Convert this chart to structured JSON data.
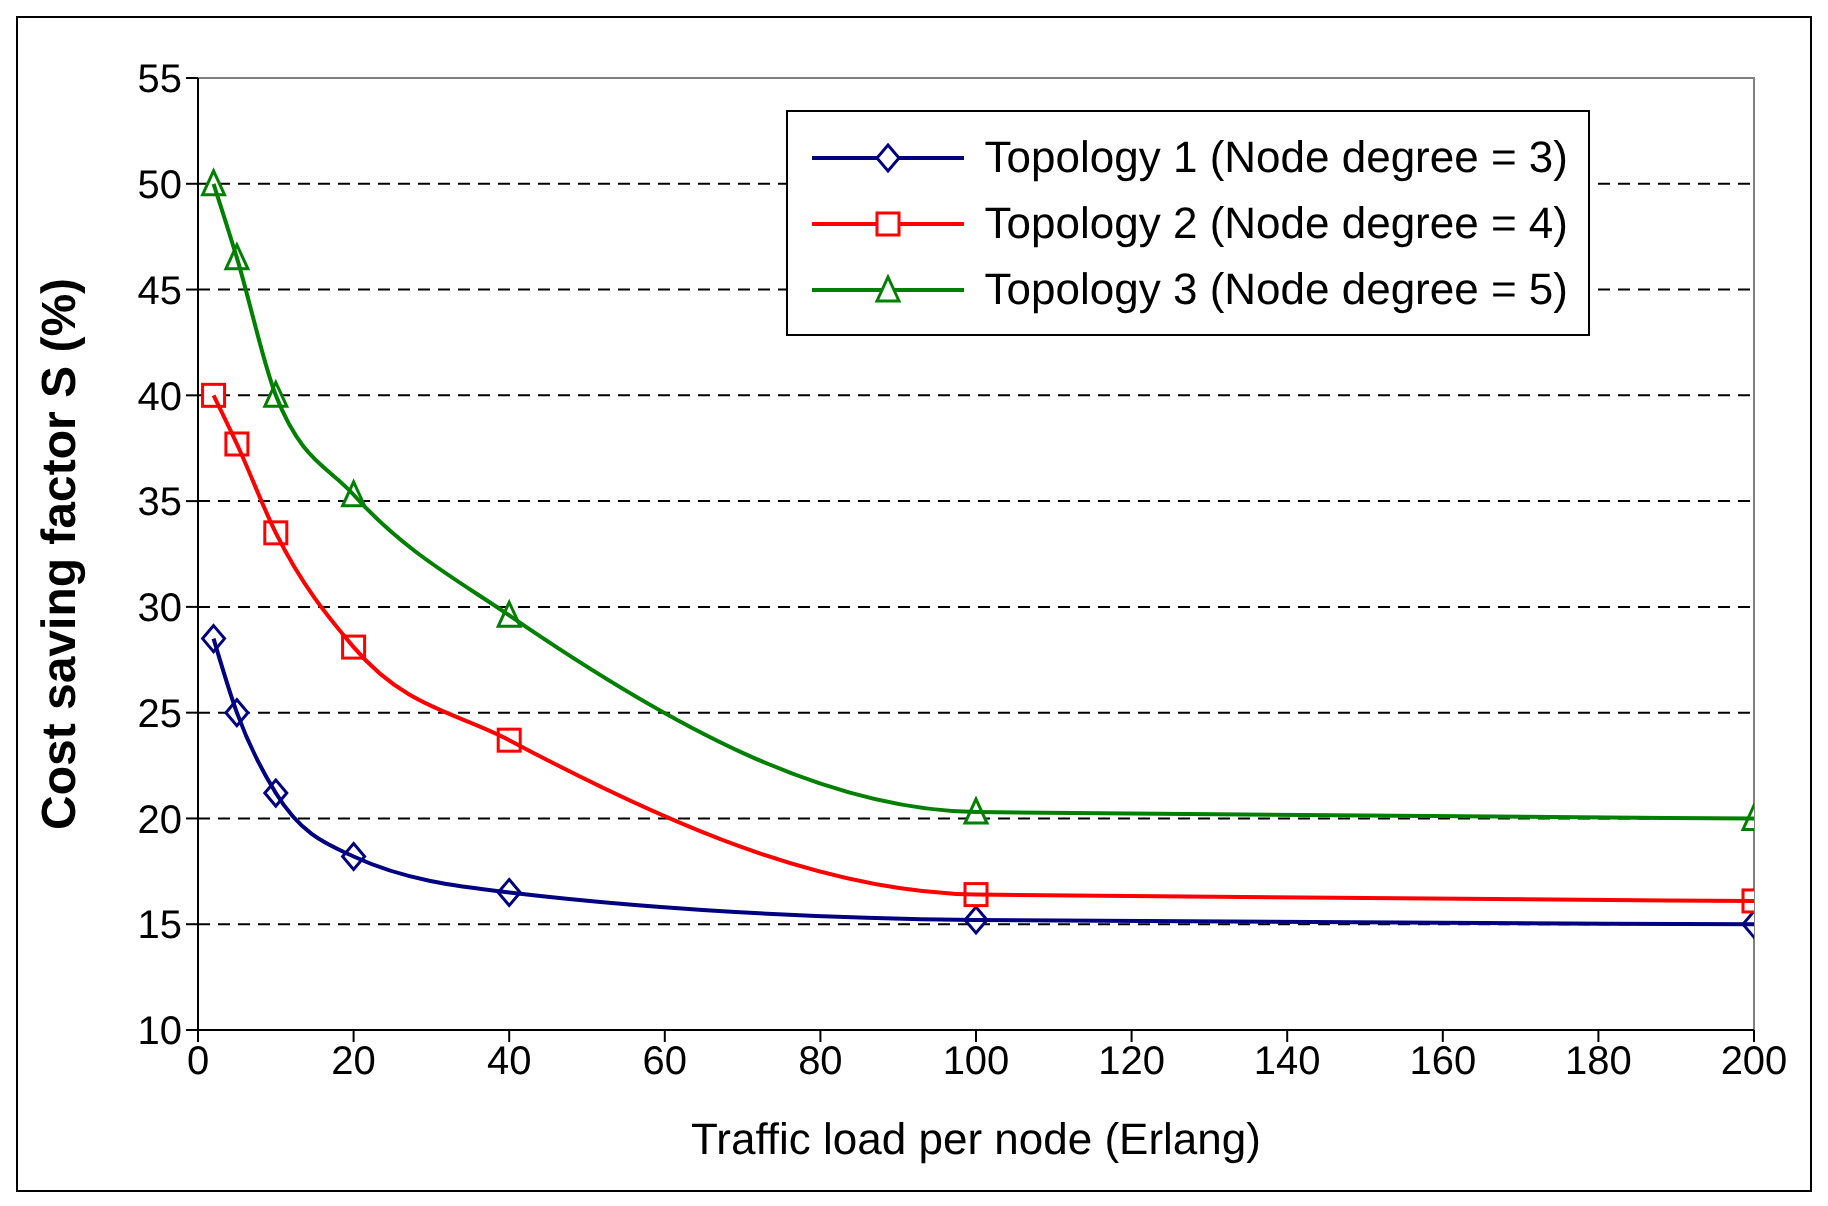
{
  "chart_data": {
    "type": "line",
    "xlabel": "Traffic load per node (Erlang)",
    "ylabel": "Cost saving factor  S (%)",
    "x": [
      2,
      5,
      10,
      20,
      40,
      100,
      200
    ],
    "series": [
      {
        "name": "Topology 1 (Node degree = 3)",
        "color": "#000080",
        "marker": "diamond",
        "values": [
          28.5,
          25,
          21.2,
          18.2,
          16.5,
          15.2,
          15
        ]
      },
      {
        "name": "Topology 2 (Node degree = 4)",
        "color": "#ff0000",
        "marker": "square",
        "values": [
          40,
          37.7,
          33.5,
          28.1,
          23.7,
          16.4,
          16.1
        ]
      },
      {
        "name": "Topology 3 (Node degree = 5)",
        "color": "#008000",
        "marker": "triangle",
        "values": [
          50,
          46.5,
          40,
          35.3,
          29.6,
          20.3,
          20
        ]
      }
    ],
    "xlim": [
      0,
      200
    ],
    "xticks": [
      0,
      20,
      40,
      60,
      80,
      100,
      120,
      140,
      160,
      180,
      200
    ],
    "ylim": [
      10,
      55
    ],
    "yticks": [
      10,
      15,
      20,
      25,
      30,
      35,
      40,
      45,
      50,
      55
    ],
    "grid": "y",
    "legend": "top right",
    "line_style": "solid"
  }
}
